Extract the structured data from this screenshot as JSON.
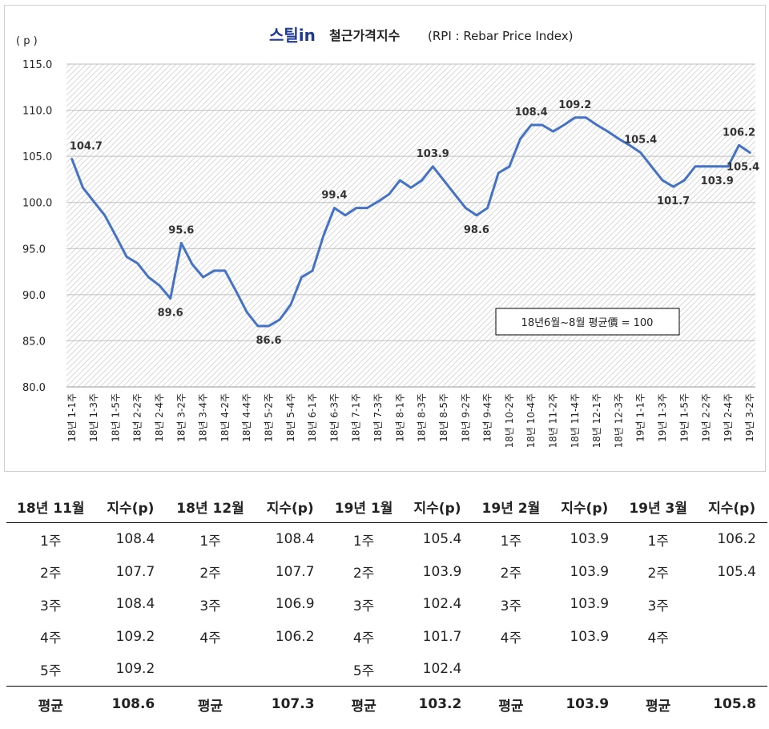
{
  "chart_data": {
    "type": "line",
    "brand": "스틸in",
    "title": "철근가격지수",
    "subtitle": "(RPI : Rebar Price Index)",
    "ylabel": "( p )",
    "ylim": [
      80,
      115
    ],
    "yticks": [
      "115.0",
      "110.0",
      "105.0",
      "100.0",
      "95.0",
      "90.0",
      "85.0",
      "80.0"
    ],
    "grid": true,
    "grid_style": "diagonal-hatch",
    "line_color": "#4472C4",
    "note": "18년6월~8월 평균價 = 100",
    "x": [
      "18년 1-1주",
      "18년 1-2주",
      "18년 1-3주",
      "18년 1-4주",
      "18년 1-5주",
      "18년 2-1주",
      "18년 2-2주",
      "18년 2-3주",
      "18년 2-4주",
      "18년 3-1주",
      "18년 3-2주",
      "18년 3-3주",
      "18년 3-4주",
      "18년 4-1주",
      "18년 4-2주",
      "18년 4-3주",
      "18년 4-4주",
      "18년 5-1주",
      "18년 5-2주",
      "18년 5-3주",
      "18년 5-4주",
      "18년 5-5주",
      "18년 6-1주",
      "18년 6-2주",
      "18년 6-3주",
      "18년 6-4주",
      "18년 7-1주",
      "18년 7-2주",
      "18년 7-3주",
      "18년 7-4주",
      "18년 8-1주",
      "18년 8-2주",
      "18년 8-3주",
      "18년 8-4주",
      "18년 8-5주",
      "18년 9-1주",
      "18년 9-2주",
      "18년 9-3주",
      "18년 9-4주",
      "18년 10-1주",
      "18년 10-2주",
      "18년 10-3주",
      "18년 10-4주",
      "18년 11-1주",
      "18년 11-2주",
      "18년 11-3주",
      "18년 11-4주",
      "18년 11-5주",
      "18년 12-1주",
      "18년 12-2주",
      "18년 12-3주",
      "18년 12-4주",
      "19년 1-1주",
      "19년 1-2주",
      "19년 1-3주",
      "19년 1-4주",
      "19년 1-5주",
      "19년 2-1주",
      "19년 2-2주",
      "19년 2-3주",
      "19년 2-4주",
      "19년 3-1주",
      "19년 3-2주"
    ],
    "xtick_labels": [
      "18년 1-1주",
      "18년 1-3주",
      "18년 1-5주",
      "18년 2-2주",
      "18년 2-4주",
      "18년 3-2주",
      "18년 3-4주",
      "18년 4-2주",
      "18년 4-4주",
      "18년 5-2주",
      "18년 5-4주",
      "18년 6-1주",
      "18년 6-3주",
      "18년 7-1주",
      "18년 7-3주",
      "18년 8-1주",
      "18년 8-3주",
      "18년 8-5주",
      "18년 9-2주",
      "18년 9-4주",
      "18년 10-2주",
      "18년 10-4주",
      "18년 11-2주",
      "18년 11-4주",
      "18년 12-1주",
      "18년 12-3주",
      "19년 1-1주",
      "19년 1-3주",
      "19년 1-5주",
      "19년 2-2주",
      "19년 2-4주",
      "19년 3-2주"
    ],
    "series": [
      {
        "values": [
          104.7,
          101.6,
          100.1,
          98.6,
          96.4,
          94.1,
          93.4,
          91.9,
          91.0,
          89.6,
          95.6,
          93.3,
          91.9,
          92.6,
          92.6,
          90.4,
          88.1,
          86.6,
          86.6,
          87.3,
          88.9,
          91.9,
          92.6,
          96.4,
          99.4,
          98.6,
          99.4,
          99.4,
          100.1,
          100.9,
          102.4,
          101.6,
          102.4,
          103.9,
          102.4,
          100.9,
          99.4,
          98.6,
          99.4,
          103.2,
          103.9,
          106.9,
          108.4,
          108.4,
          107.7,
          108.4,
          109.2,
          109.2,
          108.4,
          107.7,
          106.9,
          106.2,
          105.4,
          103.9,
          102.4,
          101.7,
          102.4,
          103.9,
          103.9,
          103.9,
          103.9,
          106.2,
          105.4
        ]
      }
    ],
    "data_labels": [
      {
        "i": 0,
        "text": "104.7",
        "pos": "above"
      },
      {
        "i": 9,
        "text": "89.6",
        "pos": "below"
      },
      {
        "i": 10,
        "text": "95.6",
        "pos": "above"
      },
      {
        "i": 18,
        "text": "86.6",
        "pos": "below"
      },
      {
        "i": 24,
        "text": "99.4",
        "pos": "above"
      },
      {
        "i": 33,
        "text": "103.9",
        "pos": "above"
      },
      {
        "i": 37,
        "text": "98.6",
        "pos": "below"
      },
      {
        "i": 42,
        "text": "108.4",
        "pos": "above"
      },
      {
        "i": 46,
        "text": "109.2",
        "pos": "above"
      },
      {
        "i": 52,
        "text": "105.4",
        "pos": "above"
      },
      {
        "i": 55,
        "text": "101.7",
        "pos": "below"
      },
      {
        "i": 59,
        "text": "103.9",
        "pos": "below"
      },
      {
        "i": 61,
        "text": "106.2",
        "pos": "above"
      },
      {
        "i": 62,
        "text": "105.4",
        "pos": "below"
      }
    ]
  },
  "table": {
    "headers": [
      "18년 11월",
      "지수(p)",
      "18년 12월",
      "지수(p)",
      "19년 1월",
      "지수(p)",
      "19년 2월",
      "지수(p)",
      "19년 3월",
      "지수(p)"
    ],
    "rows": [
      [
        "1주",
        "108.4",
        "1주",
        "108.4",
        "1주",
        "105.4",
        "1주",
        "103.9",
        "1주",
        "106.2"
      ],
      [
        "2주",
        "107.7",
        "2주",
        "107.7",
        "2주",
        "103.9",
        "2주",
        "103.9",
        "2주",
        "105.4"
      ],
      [
        "3주",
        "108.4",
        "3주",
        "106.9",
        "3주",
        "102.4",
        "3주",
        "103.9",
        "3주",
        ""
      ],
      [
        "4주",
        "109.2",
        "4주",
        "106.2",
        "4주",
        "101.7",
        "4주",
        "103.9",
        "4주",
        ""
      ],
      [
        "5주",
        "109.2",
        "",
        "",
        "5주",
        "102.4",
        "",
        "",
        "",
        ""
      ]
    ],
    "average": [
      "평균",
      "108.6",
      "평균",
      "107.3",
      "평균",
      "103.2",
      "평균",
      "103.9",
      "평균",
      "105.8"
    ]
  }
}
